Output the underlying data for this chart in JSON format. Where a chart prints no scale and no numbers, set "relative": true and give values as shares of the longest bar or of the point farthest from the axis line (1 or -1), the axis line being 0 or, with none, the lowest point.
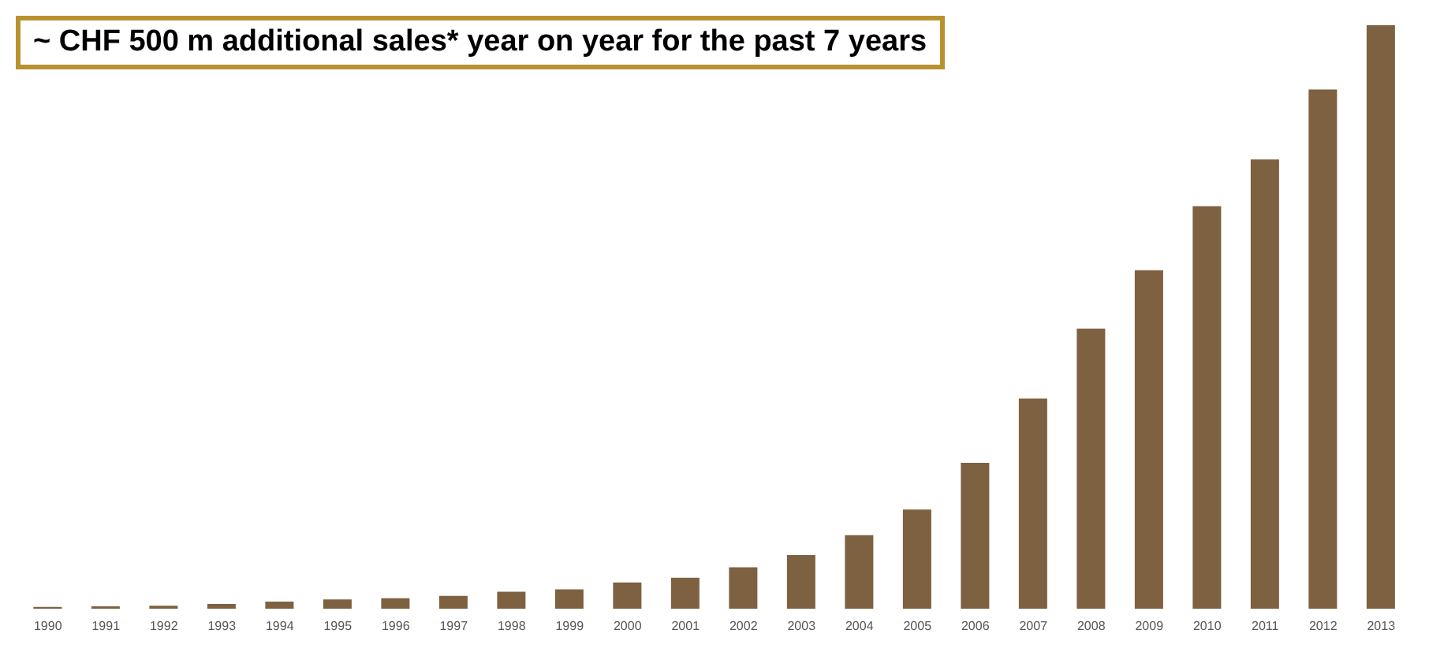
{
  "chart_data": {
    "type": "bar",
    "title": "~ CHF 500 m additional sales* year on year for the past 7 years",
    "relative": true,
    "categories": [
      "1990",
      "1991",
      "1992",
      "1993",
      "1994",
      "1995",
      "1996",
      "1997",
      "1998",
      "1999",
      "2000",
      "2001",
      "2002",
      "2003",
      "2004",
      "2005",
      "2006",
      "2007",
      "2008",
      "2009",
      "2010",
      "2011",
      "2012",
      "2013"
    ],
    "values": [
      0.003,
      0.004,
      0.005,
      0.008,
      0.012,
      0.016,
      0.018,
      0.022,
      0.029,
      0.033,
      0.045,
      0.053,
      0.071,
      0.092,
      0.126,
      0.17,
      0.25,
      0.36,
      0.48,
      0.58,
      0.69,
      0.77,
      0.89,
      1
    ],
    "color": "#7d6140",
    "grid": false,
    "legend": false
  }
}
